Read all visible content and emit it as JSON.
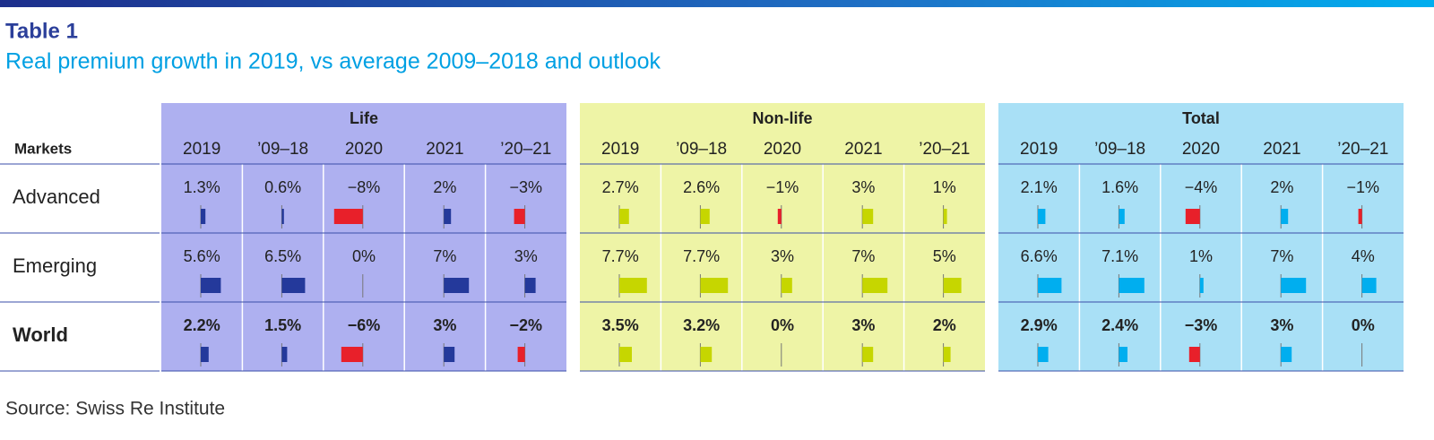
{
  "header": {
    "title": "Table 1",
    "subtitle": "Real premium growth in 2019, vs average 2009–2018 and outlook"
  },
  "table": {
    "row_header": "Markets",
    "columns": [
      "2019",
      "’09–18",
      "2020",
      "2021",
      "’20–21"
    ],
    "groups": [
      {
        "name": "Life",
        "background": "#aeb0f0",
        "bar_color": "#24399b"
      },
      {
        "name": "Non-life",
        "background": "#eef4a6",
        "bar_color": "#c6d600"
      },
      {
        "name": "Total",
        "background": "#a9e0f6",
        "bar_color": "#00aeef"
      }
    ],
    "negative_color": "#e8202a",
    "rows": [
      {
        "name": "Advanced",
        "cells": [
          [
            {
              "value": 1.3,
              "label": "1.3%"
            },
            {
              "value": 0.6,
              "label": "0.6%"
            },
            {
              "value": -8,
              "label": "−8%"
            },
            {
              "value": 2,
              "label": "2%"
            },
            {
              "value": -3,
              "label": "−3%"
            }
          ],
          [
            {
              "value": 2.7,
              "label": "2.7%"
            },
            {
              "value": 2.6,
              "label": "2.6%"
            },
            {
              "value": -1,
              "label": "−1%"
            },
            {
              "value": 3,
              "label": "3%"
            },
            {
              "value": 1,
              "label": "1%"
            }
          ],
          [
            {
              "value": 2.1,
              "label": "2.1%"
            },
            {
              "value": 1.6,
              "label": "1.6%"
            },
            {
              "value": -4,
              "label": "−4%"
            },
            {
              "value": 2,
              "label": "2%"
            },
            {
              "value": -1,
              "label": "−1%"
            }
          ]
        ]
      },
      {
        "name": "Emerging",
        "cells": [
          [
            {
              "value": 5.6,
              "label": "5.6%"
            },
            {
              "value": 6.5,
              "label": "6.5%"
            },
            {
              "value": 0,
              "label": "0%"
            },
            {
              "value": 7,
              "label": "7%"
            },
            {
              "value": 3,
              "label": "3%"
            }
          ],
          [
            {
              "value": 7.7,
              "label": "7.7%"
            },
            {
              "value": 7.7,
              "label": "7.7%"
            },
            {
              "value": 3,
              "label": "3%"
            },
            {
              "value": 7,
              "label": "7%"
            },
            {
              "value": 5,
              "label": "5%"
            }
          ],
          [
            {
              "value": 6.6,
              "label": "6.6%"
            },
            {
              "value": 7.1,
              "label": "7.1%"
            },
            {
              "value": 1,
              "label": "1%"
            },
            {
              "value": 7,
              "label": "7%"
            },
            {
              "value": 4,
              "label": "4%"
            }
          ]
        ]
      },
      {
        "name": "World",
        "cells": [
          [
            {
              "value": 2.2,
              "label": "2.2%"
            },
            {
              "value": 1.5,
              "label": "1.5%"
            },
            {
              "value": -6,
              "label": "−6%"
            },
            {
              "value": 3,
              "label": "3%"
            },
            {
              "value": -2,
              "label": "−2%"
            }
          ],
          [
            {
              "value": 3.5,
              "label": "3.5%"
            },
            {
              "value": 3.2,
              "label": "3.2%"
            },
            {
              "value": 0,
              "label": "0%"
            },
            {
              "value": 3,
              "label": "3%"
            },
            {
              "value": 2,
              "label": "2%"
            }
          ],
          [
            {
              "value": 2.9,
              "label": "2.9%"
            },
            {
              "value": 2.4,
              "label": "2.4%"
            },
            {
              "value": -3,
              "label": "−3%"
            },
            {
              "value": 3,
              "label": "3%"
            },
            {
              "value": 0,
              "label": "0%"
            }
          ]
        ]
      }
    ]
  },
  "source": "Source: Swiss Re Institute"
}
